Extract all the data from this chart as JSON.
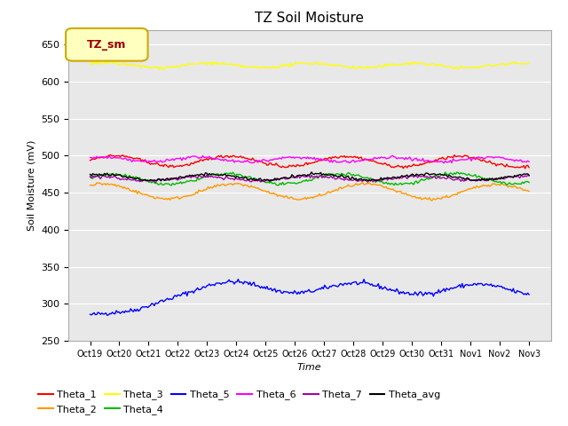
{
  "title": "TZ Soil Moisture",
  "xlabel": "Time",
  "ylabel": "Soil Moisture (mV)",
  "ylim": [
    250,
    670
  ],
  "yticks": [
    250,
    300,
    350,
    400,
    450,
    500,
    550,
    600,
    650
  ],
  "bg_color": "#e8e8e8",
  "legend_box_label": "TZ_sm",
  "legend_box_color": "#ffffc0",
  "legend_box_border_color": "#ccaa00",
  "legend_box_text_color": "#990000",
  "series_order": [
    "Theta_1",
    "Theta_2",
    "Theta_3",
    "Theta_4",
    "Theta_5",
    "Theta_6",
    "Theta_7",
    "Theta_avg"
  ],
  "series_colors": {
    "Theta_1": "#ff0000",
    "Theta_2": "#ff9900",
    "Theta_3": "#ffff00",
    "Theta_4": "#00bb00",
    "Theta_5": "#0000ff",
    "Theta_6": "#ff00ff",
    "Theta_7": "#aa00aa",
    "Theta_avg": "#000000"
  },
  "xtick_labels": [
    "Oct 19",
    "Oct 20",
    "Oct 21",
    "Oct 22",
    "Oct 23",
    "Oct 24",
    "Oct 25",
    "Oct 26",
    "Oct 27",
    "Oct 28",
    "Oct 29",
    "Oct 30",
    "Oct 31",
    "Nov 1",
    "Nov 2",
    "Nov 3"
  ],
  "n_points": 336,
  "seed": 42
}
